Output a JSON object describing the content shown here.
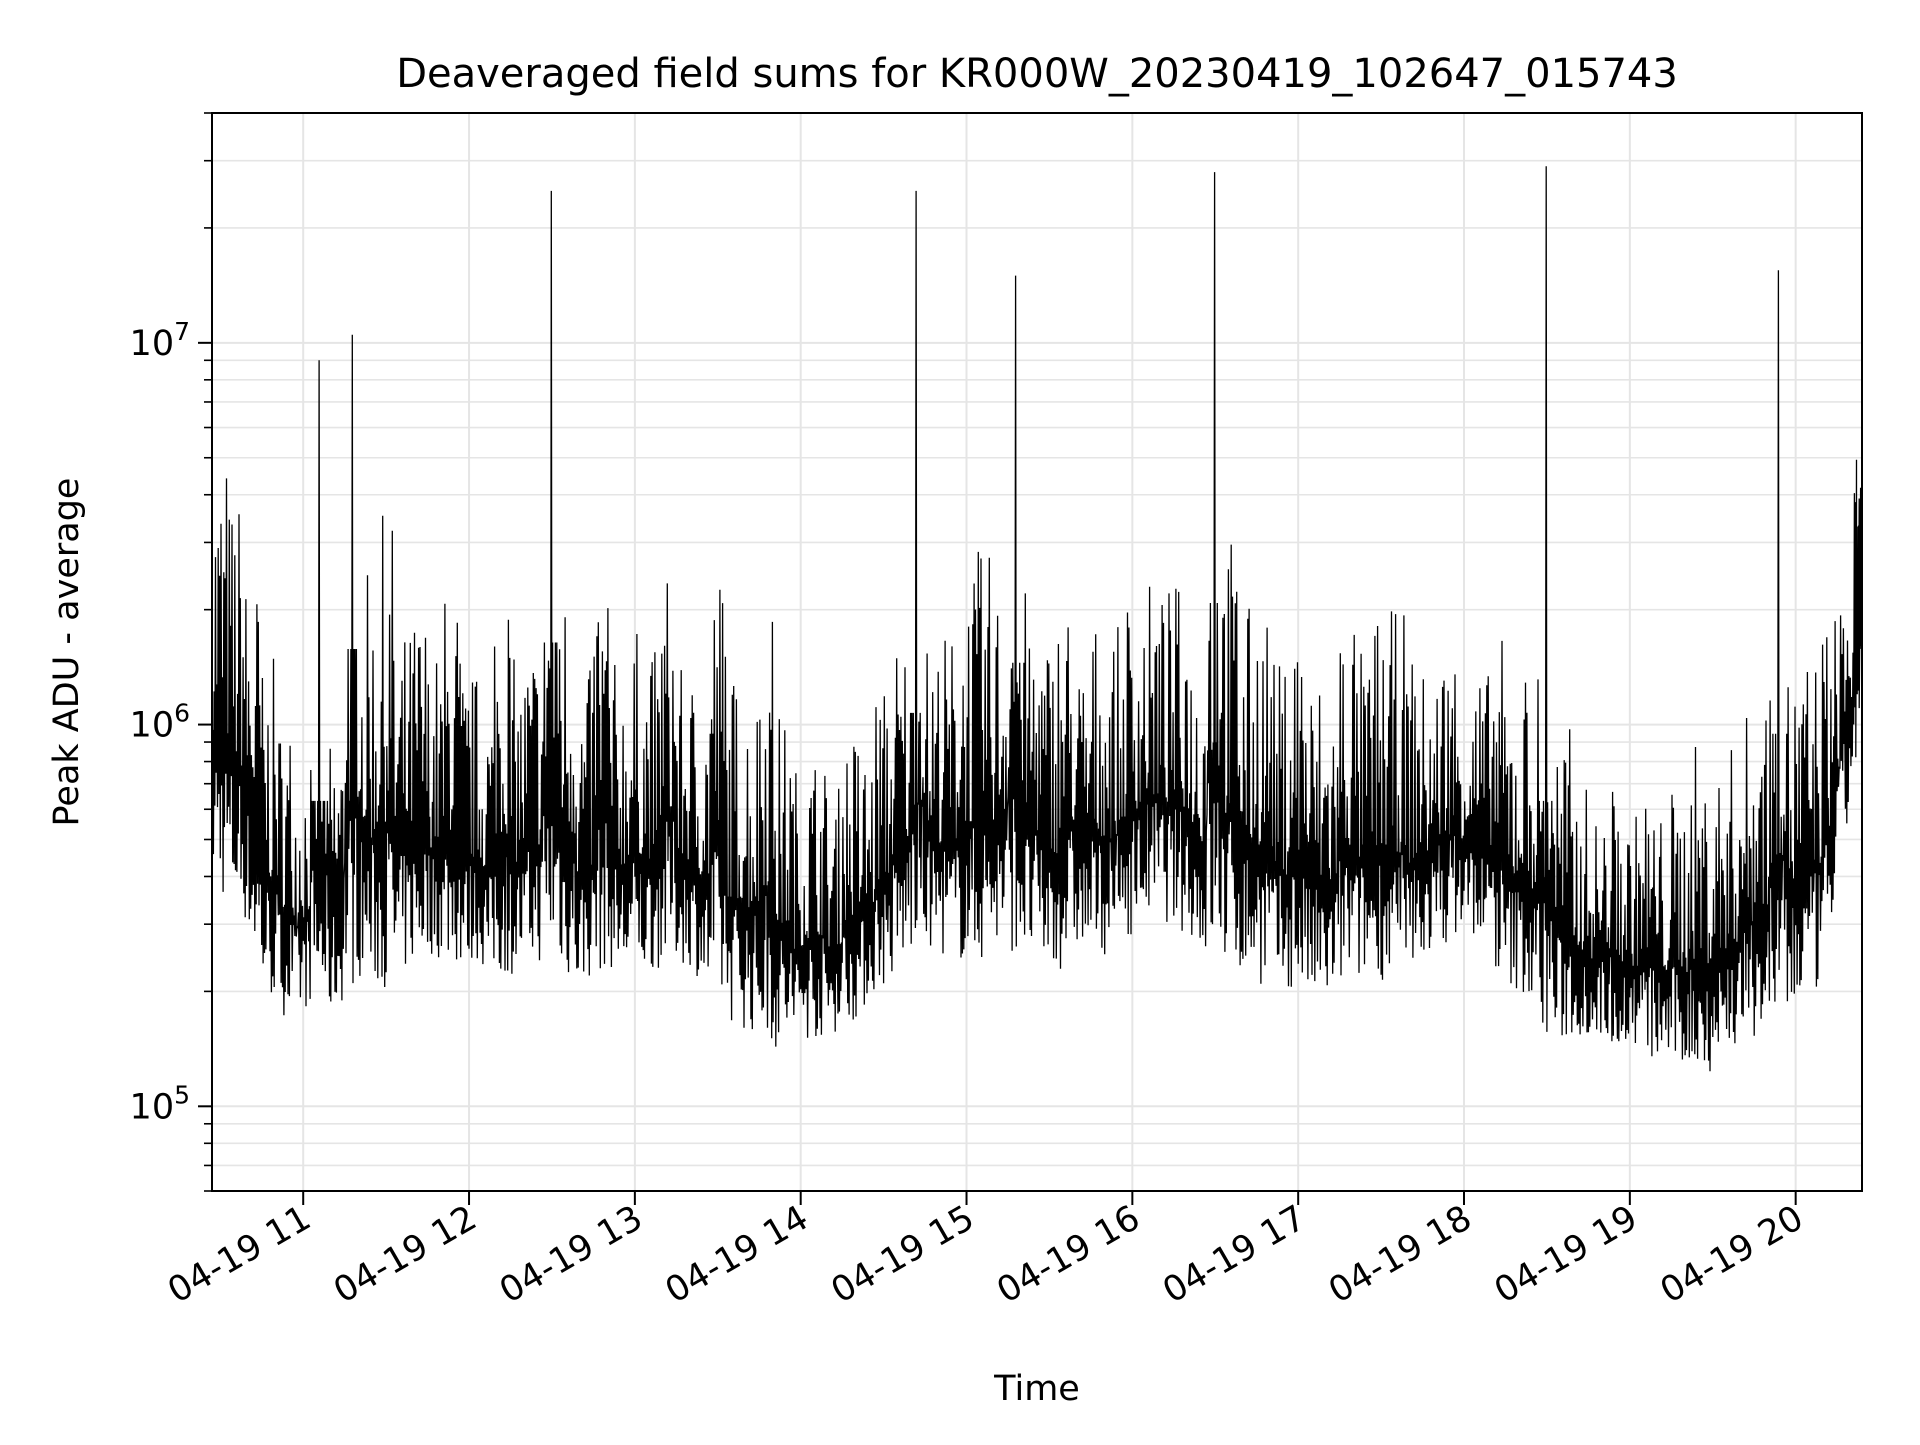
{
  "chart_data": {
    "type": "line",
    "title": "Deaveraged field sums for KR000W_20230419_102647_015743",
    "xlabel": "Time",
    "ylabel": "Peak ADU - average",
    "yscale": "log",
    "xlim": [
      "2023-04-19 10:27",
      "2023-04-19 20:24"
    ],
    "ylim": [
      60000,
      40000000
    ],
    "x_tick_labels": [
      "04-19 11",
      "04-19 12",
      "04-19 13",
      "04-19 14",
      "04-19 15",
      "04-19 16",
      "04-19 17",
      "04-19 18",
      "04-19 19",
      "04-19 20"
    ],
    "y_tick_labels": [
      {
        "value": 100000,
        "mantissa": "10",
        "exponent": "5"
      },
      {
        "value": 1000000,
        "mantissa": "10",
        "exponent": "6"
      },
      {
        "value": 10000000,
        "mantissa": "10",
        "exponent": "7"
      }
    ],
    "grid": true,
    "line_color": "#000000",
    "grid_color": "#e5e5e5",
    "series": [
      {
        "x": [
          "10:27",
          "10:33",
          "10:39",
          "10:45",
          "10:51",
          "10:57",
          "11:03",
          "11:09",
          "11:15",
          "11:21",
          "11:27",
          "11:33",
          "11:39",
          "11:45",
          "11:51",
          "11:57",
          "12:03",
          "12:09",
          "12:15",
          "12:21",
          "12:27",
          "12:33",
          "12:39",
          "12:45",
          "12:51",
          "12:57",
          "13:03",
          "13:09",
          "13:15",
          "13:21",
          "13:27",
          "13:33",
          "13:39",
          "13:45",
          "13:51",
          "13:57",
          "14:03",
          "14:09",
          "14:15",
          "14:21",
          "14:27",
          "14:33",
          "14:39",
          "14:45",
          "14:51",
          "14:57",
          "15:03",
          "15:09",
          "15:15",
          "15:21",
          "15:27",
          "15:33",
          "15:39",
          "15:45",
          "15:51",
          "15:57",
          "16:03",
          "16:09",
          "16:15",
          "16:21",
          "16:27",
          "16:33",
          "16:39",
          "16:45",
          "16:51",
          "16:57",
          "17:03",
          "17:09",
          "17:15",
          "17:21",
          "17:27",
          "17:33",
          "17:39",
          "17:45",
          "17:51",
          "17:57",
          "18:03",
          "18:09",
          "18:15",
          "18:21",
          "18:27",
          "18:33",
          "18:39",
          "18:45",
          "18:51",
          "18:57",
          "19:03",
          "19:09",
          "19:15",
          "19:21",
          "19:27",
          "19:33",
          "19:39",
          "19:45",
          "19:51",
          "19:57",
          "20:03",
          "20:09",
          "20:15",
          "20:21",
          "20:24"
        ],
        "min": [
          380000,
          330000,
          300000,
          200000,
          180000,
          160000,
          190000,
          170000,
          190000,
          220000,
          200000,
          210000,
          230000,
          250000,
          240000,
          230000,
          240000,
          210000,
          220000,
          230000,
          240000,
          230000,
          200000,
          220000,
          230000,
          210000,
          220000,
          230000,
          240000,
          230000,
          190000,
          170000,
          160000,
          150000,
          140000,
          140000,
          150000,
          150000,
          160000,
          170000,
          200000,
          210000,
          240000,
          260000,
          250000,
          240000,
          230000,
          250000,
          260000,
          240000,
          230000,
          220000,
          260000,
          250000,
          250000,
          270000,
          300000,
          320000,
          290000,
          280000,
          240000,
          230000,
          220000,
          210000,
          200000,
          200000,
          190000,
          180000,
          200000,
          210000,
          220000,
          210000,
          210000,
          240000,
          260000,
          280000,
          280000,
          250000,
          200000,
          200000,
          160000,
          140000,
          150000,
          150000,
          150000,
          140000,
          140000,
          130000,
          130000,
          120000,
          120000,
          130000,
          140000,
          150000,
          150000,
          160000,
          190000,
          200000,
          350000,
          700000,
          1000000
        ],
        "max": [
          5500000,
          4200000,
          2600000,
          1500000,
          1100000,
          900000,
          9000000,
          1000000,
          10500000,
          2500000,
          3800000,
          1800000,
          2100000,
          1600000,
          2300000,
          1400000,
          1300000,
          2600000,
          1500000,
          1800000,
          25000000,
          2600000,
          1400000,
          3200000,
          1500000,
          1800000,
          1600000,
          3100000,
          1400000,
          1300000,
          3100000,
          1400000,
          1300000,
          3900000,
          1100000,
          800000,
          900000,
          700000,
          1000000,
          900000,
          1300000,
          1800000,
          25000000,
          1700000,
          1800000,
          2700000,
          2900000,
          2500000,
          15000000,
          2300000,
          1800000,
          2200000,
          1500000,
          1900000,
          1800000,
          2300000,
          2400000,
          2300000,
          2400000,
          1700000,
          28000000,
          3300000,
          2100000,
          2300000,
          1500000,
          2200000,
          1400000,
          1300000,
          2200000,
          1600000,
          2000000,
          2000000,
          1600000,
          1400000,
          1700000,
          1500000,
          1400000,
          1700000,
          1300000,
          1500000,
          29000000,
          1000000,
          700000,
          600000,
          700000,
          600000,
          700000,
          600000,
          700000,
          900000,
          800000,
          900000,
          1100000,
          1500000,
          15500000,
          1500000,
          1600000,
          2000000,
          3000000,
          5000000,
          10500000
        ]
      }
    ]
  }
}
